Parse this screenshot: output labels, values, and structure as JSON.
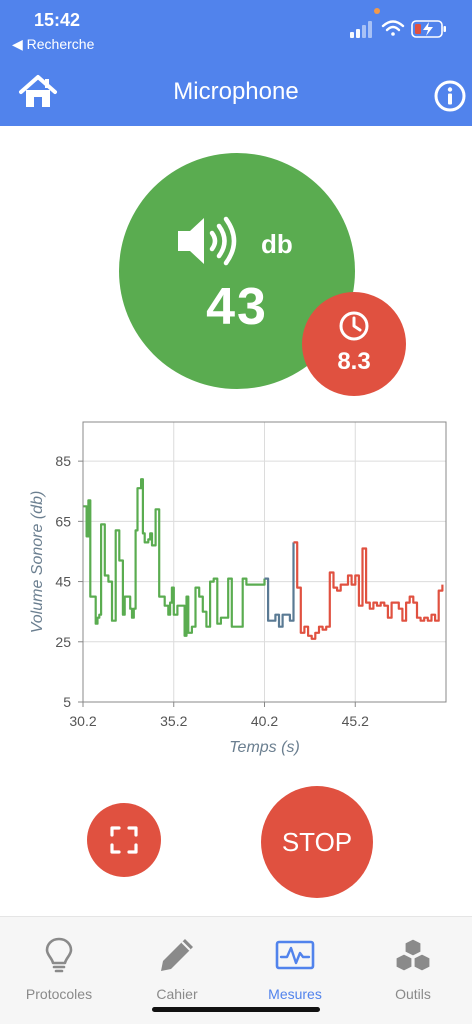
{
  "status_bar": {
    "time": "15:42",
    "back_label": "◀ Recherche"
  },
  "header": {
    "title": "Microphone"
  },
  "sound": {
    "value": "43",
    "unit": "db"
  },
  "timer": {
    "value": "8.3"
  },
  "chart_data": {
    "type": "line",
    "xlabel": "Temps (s)",
    "ylabel": "Volume Sonore (db)",
    "xlim": [
      30.2,
      50.2
    ],
    "ylim": [
      5,
      98
    ],
    "x_ticks": [
      "30.2",
      "35.2",
      "40.2",
      "45.2"
    ],
    "y_ticks": [
      "5",
      "25",
      "45",
      "65",
      "85"
    ],
    "grid": true,
    "series": [
      {
        "color": "#5aac50",
        "x": [
          30.2,
          30.4,
          30.5,
          30.6,
          30.8,
          30.9,
          31.0,
          31.1,
          31.2,
          31.4,
          31.6,
          31.8,
          32.0,
          32.2,
          32.4,
          32.5,
          32.6,
          32.8,
          32.9,
          33.0,
          33.1,
          33.2,
          33.4,
          33.5,
          33.6,
          33.8,
          33.9,
          34.0,
          34.2,
          34.4,
          34.6,
          34.7,
          34.8,
          34.9,
          35.0,
          35.1,
          35.2,
          35.4,
          35.6,
          35.8,
          35.9,
          36.0,
          36.2,
          36.4,
          36.6,
          36.8,
          37.0,
          37.2,
          37.4,
          37.6,
          37.8,
          38.0,
          38.2,
          38.4,
          38.6,
          38.8,
          39.0,
          39.2,
          39.4,
          39.6,
          39.8,
          40.0,
          40.2
        ],
        "y": [
          70,
          60,
          72,
          40,
          40,
          31,
          33,
          34,
          64,
          47,
          45,
          32,
          62,
          52,
          34,
          40,
          40,
          36,
          33,
          36,
          62,
          76,
          79,
          61,
          58,
          59,
          61,
          57,
          69,
          40,
          40,
          37,
          37,
          34,
          38,
          43,
          34,
          37,
          37,
          27,
          40,
          28,
          30,
          43,
          40,
          35,
          30,
          45,
          46,
          31,
          33,
          33,
          46,
          30,
          30,
          30,
          46,
          44,
          44,
          44,
          44,
          44,
          46
        ]
      },
      {
        "color": "#5a7a94",
        "x": [
          40.2,
          40.4,
          40.6,
          40.8,
          41.0,
          41.2,
          41.4,
          41.6,
          41.8
        ],
        "y": [
          46,
          32,
          32,
          34,
          30,
          34,
          34,
          32,
          58
        ]
      },
      {
        "color": "#e05140",
        "x": [
          41.8,
          42.0,
          42.2,
          42.4,
          42.6,
          42.8,
          43.0,
          43.2,
          43.4,
          43.6,
          43.8,
          44.0,
          44.2,
          44.4,
          44.6,
          44.8,
          45.0,
          45.2,
          45.4,
          45.6,
          45.8,
          46.0,
          46.2,
          46.4,
          46.6,
          46.8,
          47.0,
          47.2,
          47.4,
          47.6,
          47.8,
          48.0,
          48.2,
          48.4,
          48.6,
          48.8,
          49.0,
          49.2,
          49.4,
          49.6,
          49.8,
          50.0
        ],
        "y": [
          58,
          43,
          28,
          30,
          27,
          26,
          28,
          30,
          29,
          30,
          48,
          43,
          42,
          44,
          44,
          47,
          44,
          47,
          37,
          56,
          38,
          36,
          38,
          37,
          38,
          37,
          33,
          38,
          38,
          36,
          32,
          38,
          40,
          38,
          33,
          32,
          33,
          32,
          34,
          32,
          42,
          44
        ]
      }
    ]
  },
  "fullscreen_icon": "expand-icon",
  "stop_label": "STOP",
  "tabs": [
    {
      "label": "Protocoles",
      "icon": "lightbulb-icon",
      "active": false
    },
    {
      "label": "Cahier",
      "icon": "pencil-icon",
      "active": false
    },
    {
      "label": "Mesures",
      "icon": "waveform-icon",
      "active": true
    },
    {
      "label": "Outils",
      "icon": "cubes-icon",
      "active": false
    }
  ],
  "colors": {
    "header": "#5183ec",
    "sound_circle": "#5aac50",
    "accent_red": "#e05140",
    "active_tab": "#5183ec"
  }
}
